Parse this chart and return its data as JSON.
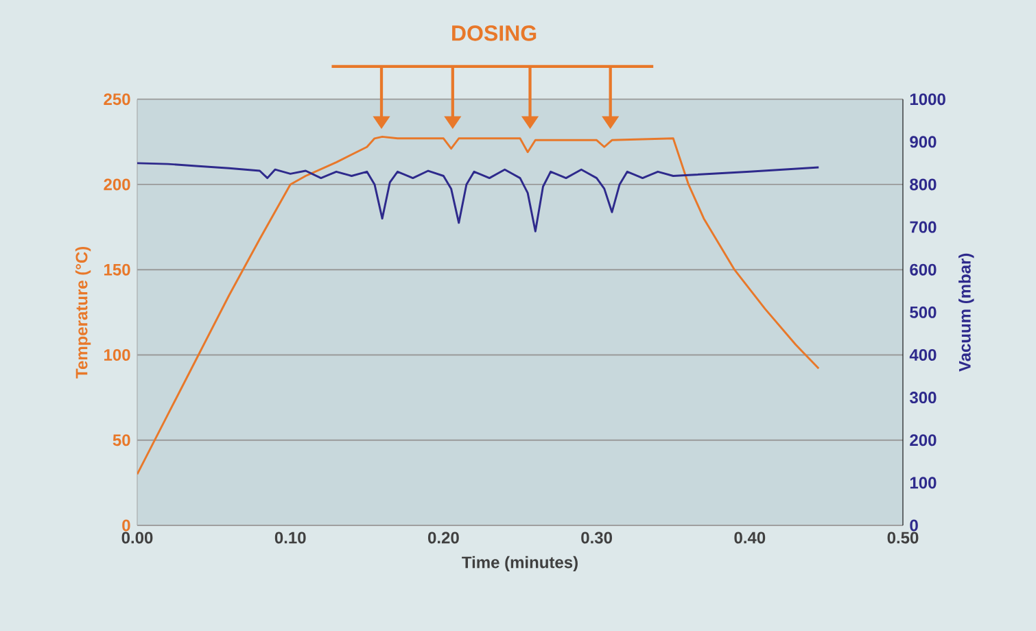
{
  "chart_data": {
    "type": "line",
    "xlabel": "Time (minutes)",
    "ylabel": "Temperature (°C)",
    "y2label": "Vacuum (mbar)",
    "annotations": [
      "DOSING"
    ],
    "xlim": [
      0,
      0.5
    ],
    "xticks": [
      {
        "value": 0,
        "label": "0.00"
      },
      {
        "value": 0.1,
        "label": "0.10"
      },
      {
        "value": 0.2,
        "label": "0.20"
      },
      {
        "value": 0.3,
        "label": "0.30"
      },
      {
        "value": 0.4,
        "label": "0.40"
      },
      {
        "value": 0.5,
        "label": "0.50"
      }
    ],
    "ylim": [
      0,
      250
    ],
    "yticks": [
      0,
      50,
      100,
      150,
      200,
      250
    ],
    "y2lim": [
      0,
      1000
    ],
    "y2ticks": [
      0,
      100,
      200,
      300,
      400,
      500,
      600,
      700,
      800,
      900,
      1000
    ],
    "grid": "y",
    "series": [
      {
        "color": "#e8782a",
        "x": [
          0,
          0.02,
          0.04,
          0.06,
          0.08,
          0.1,
          0.11,
          0.13,
          0.15,
          0.155,
          0.16,
          0.17,
          0.2,
          0.205,
          0.21,
          0.25,
          0.255,
          0.26,
          0.3,
          0.305,
          0.31,
          0.35,
          0.36,
          0.37,
          0.39,
          0.41,
          0.43,
          0.445
        ],
        "values": [
          30,
          65,
          100,
          135,
          168,
          200,
          205,
          213,
          222,
          227,
          228,
          227,
          227,
          221,
          227,
          227,
          219,
          226,
          226,
          222,
          226,
          227,
          200,
          180,
          150,
          127,
          106,
          92
        ]
      },
      {
        "color": "#2e2a8c",
        "axis": "y2",
        "x": [
          0,
          0.02,
          0.04,
          0.06,
          0.08,
          0.085,
          0.09,
          0.1,
          0.11,
          0.12,
          0.13,
          0.14,
          0.15,
          0.155,
          0.16,
          0.165,
          0.17,
          0.18,
          0.19,
          0.2,
          0.205,
          0.21,
          0.215,
          0.22,
          0.23,
          0.24,
          0.25,
          0.255,
          0.26,
          0.265,
          0.27,
          0.28,
          0.29,
          0.3,
          0.305,
          0.31,
          0.315,
          0.32,
          0.33,
          0.34,
          0.35,
          0.36,
          0.4,
          0.445
        ],
        "values": [
          850,
          848,
          843,
          838,
          832,
          815,
          835,
          825,
          832,
          815,
          830,
          820,
          830,
          800,
          720,
          805,
          830,
          815,
          832,
          820,
          790,
          710,
          800,
          830,
          815,
          835,
          815,
          780,
          690,
          795,
          830,
          815,
          835,
          815,
          790,
          735,
          800,
          830,
          815,
          830,
          820,
          822,
          830,
          840
        ]
      }
    ]
  }
}
